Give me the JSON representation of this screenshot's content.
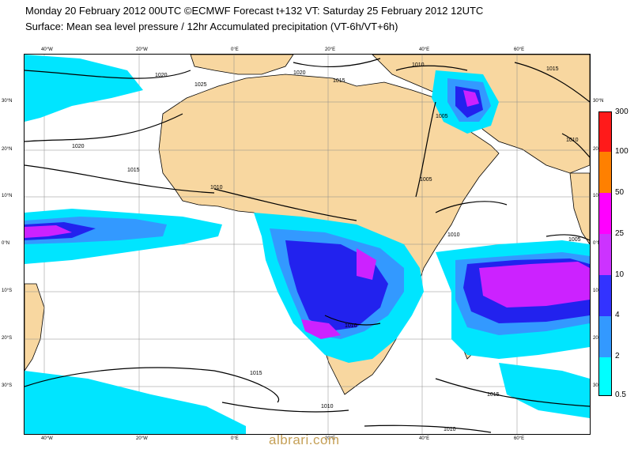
{
  "header": {
    "line1": "Monday 20 February 2012 00UTC ©ECMWF Forecast t+132 VT: Saturday 25 February 2012 12UTC",
    "line2": "Surface: Mean sea level pressure / 12hr Accumulated precipitation (VT-6h/VT+6h)"
  },
  "axes": {
    "lon_top": [
      "40°W",
      "20°W",
      "0°E",
      "20°E",
      "40°E",
      "60°E"
    ],
    "lon_bottom": [
      "40°W",
      "20°W",
      "0°E",
      "20°E",
      "40°E",
      "60°E"
    ],
    "lat_right": [
      "30°N",
      "20°N",
      "10°N",
      "0°N",
      "10°S",
      "20°S",
      "30°S"
    ],
    "lat_left": [
      "30°N",
      "20°N",
      "10°N",
      "0°N",
      "10°S",
      "20°S",
      "30°S"
    ]
  },
  "isobars": {
    "labels": [
      "1020",
      "1025",
      "1020",
      "1015",
      "1010",
      "1015",
      "1020",
      "1015",
      "1010",
      "1005",
      "1010",
      "1005",
      "1010",
      "1005",
      "1015",
      "1010",
      "1015",
      "1010",
      "1010"
    ]
  },
  "legend": {
    "values": [
      "300",
      "100",
      "50",
      "25",
      "10",
      "4",
      "2",
      "0.5"
    ],
    "colors": [
      "#ff1a1a",
      "#ff8000",
      "#ff00ff",
      "#cc33ff",
      "#3333ff",
      "#3399ff",
      "#00ffff",
      "#80ffff"
    ]
  },
  "colors": {
    "land": "#f8d7a0",
    "ocean": "#ffffff",
    "precip_light": "#00e5ff",
    "precip_medium": "#3399ff",
    "precip_heavy": "#2222ee",
    "precip_extreme": "#cc22ff"
  },
  "watermark": "albrari.com"
}
